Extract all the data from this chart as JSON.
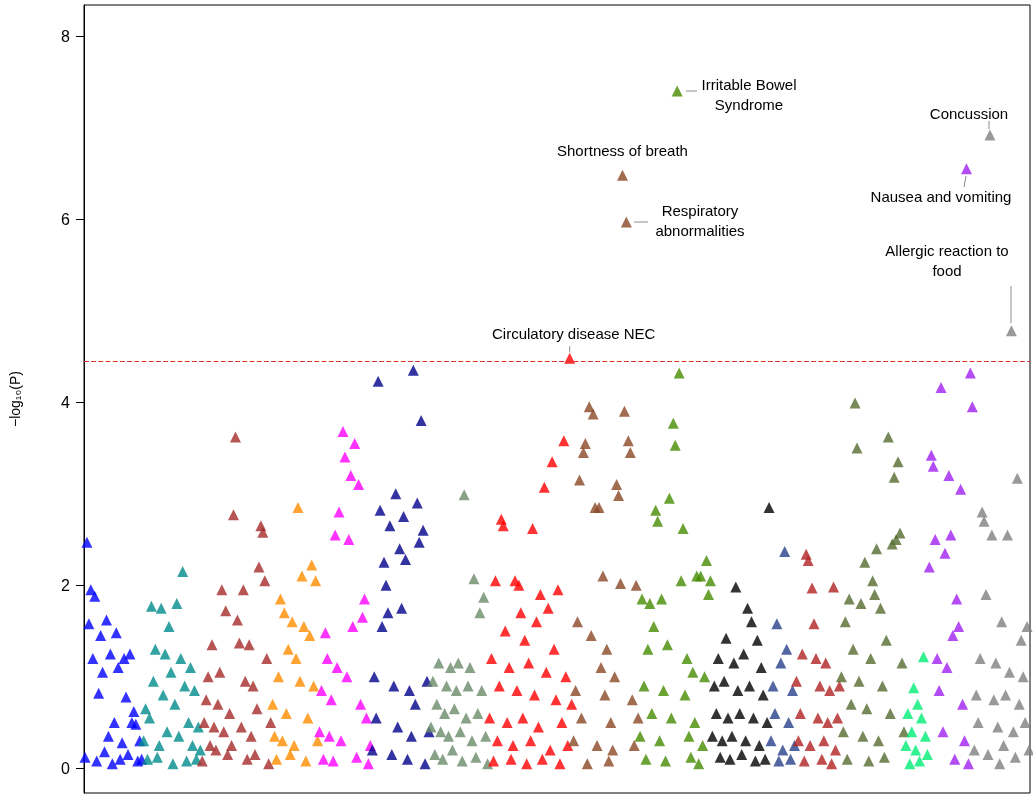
{
  "chart_data": {
    "type": "scatter",
    "ylabel": "−log₁₀(P)",
    "ylim": [
      -0.27,
      8.34
    ],
    "yticks": [
      0,
      2,
      4,
      6,
      8
    ],
    "tick_labels": "y",
    "marker": "triangle",
    "ref_lines": [
      {
        "axis": "y",
        "value": 4.45,
        "color": "#e0302a",
        "line_style": "dashed"
      }
    ],
    "annotations": [
      "Irritable Bowel\nSyndrome",
      {
        "text": "Shortness of breath",
        "y": 6.48
      },
      "Respiratory\nabnormalities",
      "Concussion",
      "Nausea and vomiting",
      "Allergic reaction to\nfood",
      {
        "text": "Circulatory disease NEC",
        "y": 4.48
      }
    ],
    "categories": [
      null,
      null,
      null,
      null,
      null,
      null,
      null,
      null,
      null,
      null,
      null,
      null,
      null,
      null,
      null,
      null,
      null,
      null,
      null,
      null,
      null,
      null,
      null,
      null,
      null,
      null,
      null,
      null,
      null,
      null,
      null,
      null,
      null,
      null,
      null,
      null,
      null,
      null,
      null,
      null,
      null,
      null,
      null,
      null,
      null,
      null,
      null,
      null,
      null,
      null,
      null,
      null,
      null,
      null,
      null,
      null,
      null,
      null,
      null,
      null,
      null,
      null,
      null,
      null,
      null,
      null,
      null,
      null,
      null,
      null,
      null,
      null,
      null,
      null,
      null,
      null,
      null,
      null,
      null,
      null,
      null,
      null,
      null,
      null,
      null,
      null,
      null,
      null,
      null,
      null,
      null,
      null,
      null,
      null,
      null,
      null,
      null,
      null,
      null,
      null,
      null,
      null,
      null,
      null,
      null,
      null,
      null,
      null,
      null,
      null,
      null,
      null,
      null,
      null,
      null,
      null,
      null,
      null,
      null,
      null,
      null,
      null,
      null,
      null,
      null,
      null,
      null,
      null,
      null,
      null,
      null,
      null,
      null,
      null,
      null,
      null,
      null,
      null,
      null,
      null,
      null,
      null,
      null,
      null,
      null,
      null,
      null,
      null,
      null,
      null,
      null,
      null,
      null,
      null,
      null,
      null,
      null,
      null,
      null,
      null,
      null,
      null,
      null,
      null,
      null,
      null,
      null,
      null,
      null,
      null,
      null,
      null,
      null,
      null,
      null,
      null,
      null,
      null,
      null,
      null,
      null,
      null,
      null,
      null,
      null,
      null,
      null,
      null,
      null,
      null,
      null,
      null,
      null,
      null,
      null,
      null,
      null,
      null,
      null,
      null,
      null,
      null,
      null,
      null,
      null,
      null,
      null,
      null,
      null,
      null,
      null,
      null,
      null,
      null,
      null,
      null,
      null,
      null,
      null,
      null,
      null,
      null,
      null,
      null,
      null,
      null,
      null,
      null,
      null,
      null,
      null,
      null,
      null,
      null,
      null,
      null,
      null,
      null,
      null,
      null,
      null,
      null,
      null,
      null,
      null,
      null,
      null,
      null,
      null,
      null,
      null,
      null,
      null,
      null,
      null,
      null,
      null,
      null,
      null,
      null,
      null,
      null,
      null,
      null,
      null,
      null,
      null,
      null,
      null,
      null,
      null,
      null,
      null,
      null,
      null,
      null,
      null,
      null,
      null,
      null,
      null,
      null,
      null,
      null,
      null,
      null,
      null,
      null,
      null,
      null,
      null,
      null,
      null,
      null,
      null,
      null,
      null,
      null,
      null,
      null,
      null,
      null,
      null,
      null,
      null,
      null,
      null,
      null,
      null,
      null,
      null,
      null,
      null,
      null,
      null,
      null,
      null,
      null,
      null,
      null,
      null,
      null,
      null,
      null,
      null,
      null,
      null,
      null,
      null,
      null,
      null,
      null,
      null,
      null,
      null,
      null,
      null,
      null,
      null,
      null,
      null,
      null,
      null,
      null,
      null,
      null,
      null,
      null,
      null,
      null,
      null,
      null,
      null,
      null,
      null,
      null,
      null,
      null,
      null,
      null,
      null,
      null,
      null,
      null,
      null,
      null,
      null,
      null,
      null,
      null,
      null,
      null,
      null,
      null,
      null,
      null,
      null,
      null,
      null,
      null,
      null,
      null,
      null,
      null,
      null,
      null,
      null,
      null,
      null,
      null,
      null,
      null,
      null,
      null,
      null,
      null,
      null,
      null,
      null,
      null,
      null,
      null,
      null,
      null,
      null,
      null,
      null,
      null,
      null,
      null,
      null,
      null,
      null,
      null,
      null,
      null,
      null,
      null,
      null,
      null,
      null,
      null,
      null,
      null,
      null,
      null,
      null,
      null,
      null,
      null,
      null,
      null,
      null,
      null,
      null,
      null,
      null,
      null,
      null,
      null,
      null,
      null,
      null,
      null,
      null,
      null,
      null,
      null,
      null,
      null,
      null,
      null,
      null,
      null,
      null,
      null,
      null,
      null,
      null,
      null,
      null,
      null,
      null,
      null,
      null,
      null,
      null,
      null,
      null,
      null,
      null,
      null,
      null,
      null,
      null,
      null,
      null,
      null,
      null,
      null,
      null,
      null,
      null,
      null
    ],
    "values": [
      0.12,
      2.47,
      1.58,
      1.95,
      1.2,
      1.88,
      0.08,
      0.82,
      1.45,
      1.05,
      0.18,
      1.62,
      0.35,
      1.25,
      0.05,
      0.5,
      1.48,
      1.1,
      0.1,
      0.28,
      1.2,
      0.78,
      0.15,
      1.25,
      0.5,
      0.62,
      0.48,
      0.08,
      0.3,
      0.1,
      0.3,
      0.65,
      0.1,
      0.55,
      1.77,
      0.95,
      1.3,
      0.12,
      0.25,
      1.75,
      0.8,
      1.25,
      0.4,
      1.55,
      1.05,
      0.05,
      0.7,
      1.8,
      0.35,
      1.2,
      2.15,
      0.9,
      0.08,
      0.5,
      1.1,
      0.25,
      0.85,
      0.1,
      0.45,
      0.2,
      0.08,
      0.5,
      0.75,
      1.0,
      0.25,
      1.35,
      0.45,
      0.2,
      0.7,
      1.05,
      1.95,
      0.4,
      1.72,
      0.15,
      0.6,
      0.25,
      2.77,
      3.62,
      1.62,
      1.37,
      0.45,
      1.95,
      0.95,
      0.1,
      1.35,
      0.35,
      0.9,
      0.15,
      0.65,
      2.2,
      2.65,
      2.58,
      2.05,
      1.2,
      0.05,
      0.5,
      0.7,
      0.35,
      0.1,
      1.0,
      1.85,
      0.3,
      1.7,
      0.6,
      1.3,
      0.15,
      1.6,
      0.25,
      1.2,
      2.85,
      0.95,
      2.1,
      1.55,
      0.08,
      0.55,
      1.45,
      2.22,
      0.9,
      2.05,
      0.3,
      0.4,
      0.85,
      0.1,
      1.48,
      1.2,
      0.35,
      0.75,
      0.08,
      2.55,
      1.1,
      2.8,
      0.3,
      3.68,
      3.4,
      1.0,
      2.5,
      3.2,
      1.55,
      3.55,
      0.12,
      3.1,
      0.7,
      1.65,
      1.85,
      0.55,
      0.05,
      0.25,
      0.2,
      1.0,
      0.55,
      4.23,
      2.82,
      1.55,
      2.25,
      2.0,
      1.7,
      2.65,
      0.15,
      0.9,
      3.0,
      0.45,
      2.4,
      1.75,
      2.75,
      2.28,
      0.1,
      0.85,
      0.35,
      4.35,
      0.7,
      2.9,
      2.47,
      3.8,
      2.6,
      0.05,
      0.95,
      0.4,
      0.45,
      0.95,
      0.15,
      0.7,
      1.15,
      0.4,
      0.1,
      0.6,
      0.9,
      0.35,
      1.1,
      0.2,
      0.65,
      0.85,
      1.15,
      0.4,
      0.08,
      2.99,
      0.55,
      0.9,
      1.1,
      0.3,
      2.07,
      0.12,
      0.6,
      1.7,
      0.85,
      1.87,
      0.35,
      0.05,
      0.55,
      1.2,
      0.08,
      2.05,
      0.3,
      0.9,
      2.72,
      2.65,
      1.5,
      0.5,
      1.1,
      0.1,
      0.25,
      2.05,
      0.85,
      2.0,
      1.7,
      0.55,
      1.4,
      0.05,
      1.15,
      0.3,
      2.62,
      0.8,
      1.6,
      0.45,
      1.9,
      0.1,
      3.07,
      1.05,
      1.75,
      0.2,
      3.35,
      1.3,
      0.75,
      1.95,
      0.05,
      0.5,
      3.58,
      1.0,
      0.25,
      4.48,
      0.7,
      0.3,
      0.85,
      1.6,
      3.15,
      0.55,
      3.45,
      3.55,
      0.05,
      3.95,
      1.45,
      3.87,
      2.85,
      0.25,
      2.85,
      1.1,
      2.1,
      0.8,
      1.3,
      0.08,
      0.5,
      0.2,
      1.0,
      3.1,
      2.98,
      2.02,
      6.48,
      3.9,
      5.97,
      3.58,
      3.45,
      0.75,
      0.25,
      2.0,
      0.55,
      0.35,
      1.85,
      0.9,
      0.1,
      1.3,
      1.8,
      0.6,
      1.55,
      2.82,
      2.7,
      0.3,
      1.85,
      0.85,
      0.08,
      1.35,
      2.95,
      0.55,
      3.77,
      3.53,
      7.4,
      4.32,
      2.05,
      2.62,
      0.8,
      1.2,
      0.35,
      0.12,
      1.05,
      0.5,
      2.1,
      0.05,
      2.1,
      0.25,
      1.0,
      2.27,
      1.9,
      2.05,
      0.35,
      0.9,
      0.6,
      1.2,
      0.12,
      0.3,
      0.95,
      1.42,
      0.55,
      0.1,
      0.35,
      1.15,
      1.98,
      0.85,
      0.6,
      0.15,
      1.25,
      0.3,
      1.75,
      0.9,
      1.6,
      0.55,
      0.08,
      1.4,
      0.25,
      1.1,
      0.8,
      0.1,
      0.5,
      2.85,
      0.3,
      0.9,
      0.6,
      1.58,
      0.08,
      1.15,
      0.2,
      2.37,
      1.3,
      0.5,
      0.1,
      0.85,
      0.25,
      0.95,
      0.3,
      0.6,
      1.25,
      0.08,
      2.34,
      2.27,
      0.25,
      1.97,
      1.58,
      1.2,
      0.55,
      0.9,
      0.1,
      0.3,
      1.15,
      0.5,
      0.85,
      0.05,
      1.98,
      0.2,
      0.55,
      0.9,
      1.0,
      0.4,
      1.6,
      0.1,
      1.85,
      0.7,
      1.3,
      3.99,
      3.5,
      0.95,
      1.8,
      0.35,
      2.25,
      0.65,
      0.08,
      1.2,
      2.05,
      1.9,
      2.4,
      0.3,
      1.75,
      0.9,
      0.12,
      1.4,
      3.62,
      0.6,
      2.45,
      3.18,
      2.5,
      3.35,
      2.57,
      1.15,
      0.4,
      0.25,
      0.6,
      0.05,
      0.4,
      0.88,
      0.2,
      0.7,
      0.08,
      0.55,
      1.22,
      0.35,
      0.15,
      2.2,
      3.42,
      3.3,
      2.5,
      1.2,
      0.85,
      4.16,
      0.4,
      2.35,
      1.1,
      3.2,
      2.55,
      1.45,
      0.1,
      1.85,
      1.55,
      3.05,
      0.7,
      0.3,
      6.55,
      0.05,
      4.32,
      3.95,
      0.2,
      0.8,
      0.5,
      1.2,
      2.8,
      2.7,
      1.9,
      0.15,
      6.92,
      2.55,
      0.75,
      1.15,
      0.45,
      0.05,
      1.6,
      0.25,
      0.8,
      2.55,
      1.05,
      4.78,
      0.4,
      0.12,
      3.17,
      0.7,
      1.4,
      1.0,
      0.5,
      1.55,
      0.2
    ],
    "colors": [
      "#0000ff",
      "#0000ff",
      "#0000ff",
      "#0000ff",
      "#0000ff",
      "#0000ff",
      "#0000ff",
      "#0000ff",
      "#0000ff",
      "#0000ff",
      "#0000ff",
      "#0000ff",
      "#0000ff",
      "#0000ff",
      "#0000ff",
      "#0000ff",
      "#0000ff",
      "#0000ff",
      "#0000ff",
      "#0000ff",
      "#0000ff",
      "#0000ff",
      "#0000ff",
      "#0000ff",
      "#0000ff",
      "#0000ff",
      "#0000ff",
      "#0000ff",
      "#0000ff",
      "#0000ff",
      "#008b8b",
      "#008b8b",
      "#008b8b",
      "#008b8b",
      "#008b8b",
      "#008b8b",
      "#008b8b",
      "#008b8b",
      "#008b8b",
      "#008b8b",
      "#008b8b",
      "#008b8b",
      "#008b8b",
      "#008b8b",
      "#008b8b",
      "#008b8b",
      "#008b8b",
      "#008b8b",
      "#008b8b",
      "#008b8b",
      "#008b8b",
      "#008b8b",
      "#008b8b",
      "#008b8b",
      "#008b8b",
      "#008b8b",
      "#008b8b",
      "#008b8b",
      "#008b8b",
      "#008b8b",
      "#a52a2a",
      "#a52a2a",
      "#a52a2a",
      "#a52a2a",
      "#a52a2a",
      "#a52a2a",
      "#a52a2a",
      "#a52a2a",
      "#a52a2a",
      "#a52a2a",
      "#a52a2a",
      "#a52a2a",
      "#a52a2a",
      "#a52a2a",
      "#a52a2a",
      "#a52a2a",
      "#a52a2a",
      "#a52a2a",
      "#a52a2a",
      "#a52a2a",
      "#a52a2a",
      "#a52a2a",
      "#a52a2a",
      "#a52a2a",
      "#a52a2a",
      "#a52a2a",
      "#a52a2a",
      "#a52a2a",
      "#a52a2a",
      "#a52a2a",
      "#a52a2a",
      "#a52a2a",
      "#a52a2a",
      "#a52a2a",
      "#a52a2a",
      "#a52a2a",
      "#ff8c00",
      "#ff8c00",
      "#ff8c00",
      "#ff8c00",
      "#ff8c00",
      "#ff8c00",
      "#ff8c00",
      "#ff8c00",
      "#ff8c00",
      "#ff8c00",
      "#ff8c00",
      "#ff8c00",
      "#ff8c00",
      "#ff8c00",
      "#ff8c00",
      "#ff8c00",
      "#ff8c00",
      "#ff8c00",
      "#ff8c00",
      "#ff8c00",
      "#ff8c00",
      "#ff8c00",
      "#ff8c00",
      "#ff8c00",
      "#ff00ff",
      "#ff00ff",
      "#ff00ff",
      "#ff00ff",
      "#ff00ff",
      "#ff00ff",
      "#ff00ff",
      "#ff00ff",
      "#ff00ff",
      "#ff00ff",
      "#ff00ff",
      "#ff00ff",
      "#ff00ff",
      "#ff00ff",
      "#ff00ff",
      "#ff00ff",
      "#ff00ff",
      "#ff00ff",
      "#ff00ff",
      "#ff00ff",
      "#ff00ff",
      "#ff00ff",
      "#ff00ff",
      "#ff00ff",
      "#ff00ff",
      "#ff00ff",
      "#ff00ff",
      "#00008b",
      "#00008b",
      "#00008b",
      "#00008b",
      "#00008b",
      "#00008b",
      "#00008b",
      "#00008b",
      "#00008b",
      "#00008b",
      "#00008b",
      "#00008b",
      "#00008b",
      "#00008b",
      "#00008b",
      "#00008b",
      "#00008b",
      "#00008b",
      "#00008b",
      "#00008b",
      "#00008b",
      "#00008b",
      "#00008b",
      "#00008b",
      "#00008b",
      "#00008b",
      "#00008b",
      "#00008b",
      "#00008b",
      "#00008b",
      "#698b69",
      "#698b69",
      "#698b69",
      "#698b69",
      "#698b69",
      "#698b69",
      "#698b69",
      "#698b69",
      "#698b69",
      "#698b69",
      "#698b69",
      "#698b69",
      "#698b69",
      "#698b69",
      "#698b69",
      "#698b69",
      "#698b69",
      "#698b69",
      "#698b69",
      "#698b69",
      "#698b69",
      "#698b69",
      "#698b69",
      "#698b69",
      "#698b69",
      "#698b69",
      "#698b69",
      "#698b69",
      "#698b69",
      "#698b69",
      "#ff0000",
      "#ff0000",
      "#ff0000",
      "#ff0000",
      "#ff0000",
      "#ff0000",
      "#ff0000",
      "#ff0000",
      "#ff0000",
      "#ff0000",
      "#ff0000",
      "#ff0000",
      "#ff0000",
      "#ff0000",
      "#ff0000",
      "#ff0000",
      "#ff0000",
      "#ff0000",
      "#ff0000",
      "#ff0000",
      "#ff0000",
      "#ff0000",
      "#ff0000",
      "#ff0000",
      "#ff0000",
      "#ff0000",
      "#ff0000",
      "#ff0000",
      "#ff0000",
      "#ff0000",
      "#ff0000",
      "#ff0000",
      "#ff0000",
      "#ff0000",
      "#ff0000",
      "#ff0000",
      "#ff0000",
      "#ff0000",
      "#ff0000",
      "#ff0000",
      "#ff0000",
      "#ff0000",
      "#ff0000",
      "#8b4726",
      "#8b4726",
      "#8b4726",
      "#8b4726",
      "#8b4726",
      "#8b4726",
      "#8b4726",
      "#8b4726",
      "#8b4726",
      "#8b4726",
      "#8b4726",
      "#8b4726",
      "#8b4726",
      "#8b4726",
      "#8b4726",
      "#8b4726",
      "#8b4726",
      "#8b4726",
      "#8b4726",
      "#8b4726",
      "#8b4726",
      "#8b4726",
      "#8b4726",
      "#8b4726",
      "#8b4726",
      "#8b4726",
      "#8b4726",
      "#8b4726",
      "#8b4726",
      "#8b4726",
      "#8b4726",
      "#8b4726",
      "#8b4726",
      "#8b4726",
      "#458b00",
      "#458b00",
      "#458b00",
      "#458b00",
      "#458b00",
      "#458b00",
      "#458b00",
      "#458b00",
      "#458b00",
      "#458b00",
      "#458b00",
      "#458b00",
      "#458b00",
      "#458b00",
      "#458b00",
      "#458b00",
      "#458b00",
      "#458b00",
      "#458b00",
      "#458b00",
      "#458b00",
      "#458b00",
      "#458b00",
      "#458b00",
      "#458b00",
      "#458b00",
      "#458b00",
      "#458b00",
      "#458b00",
      "#458b00",
      "#458b00",
      "#458b00",
      "#458b00",
      "#458b00",
      "#458b00",
      "#458b00",
      "#458b00",
      "#000000",
      "#000000",
      "#000000",
      "#000000",
      "#000000",
      "#000000",
      "#000000",
      "#000000",
      "#000000",
      "#000000",
      "#000000",
      "#000000",
      "#000000",
      "#000000",
      "#000000",
      "#000000",
      "#000000",
      "#000000",
      "#000000",
      "#000000",
      "#000000",
      "#000000",
      "#000000",
      "#000000",
      "#000000",
      "#000000",
      "#000000",
      "#000000",
      "#000000",
      "#000000",
      "#27408b",
      "#27408b",
      "#27408b",
      "#27408b",
      "#27408b",
      "#27408b",
      "#27408b",
      "#27408b",
      "#27408b",
      "#27408b",
      "#27408b",
      "#27408b",
      "#27408b",
      "#b22222",
      "#b22222",
      "#b22222",
      "#b22222",
      "#b22222",
      "#b22222",
      "#b22222",
      "#b22222",
      "#b22222",
      "#b22222",
      "#b22222",
      "#b22222",
      "#b22222",
      "#b22222",
      "#b22222",
      "#b22222",
      "#b22222",
      "#b22222",
      "#b22222",
      "#b22222",
      "#b22222",
      "#b22222",
      "#b22222",
      "#556b2f",
      "#556b2f",
      "#556b2f",
      "#556b2f",
      "#556b2f",
      "#556b2f",
      "#556b2f",
      "#556b2f",
      "#556b2f",
      "#556b2f",
      "#556b2f",
      "#556b2f",
      "#556b2f",
      "#556b2f",
      "#556b2f",
      "#556b2f",
      "#556b2f",
      "#556b2f",
      "#556b2f",
      "#556b2f",
      "#556b2f",
      "#556b2f",
      "#556b2f",
      "#556b2f",
      "#556b2f",
      "#556b2f",
      "#556b2f",
      "#556b2f",
      "#556b2f",
      "#556b2f",
      "#556b2f",
      "#556b2f",
      "#556b2f",
      "#00ee76",
      "#00ee76",
      "#00ee76",
      "#00ee76",
      "#00ee76",
      "#00ee76",
      "#00ee76",
      "#00ee76",
      "#00ee76",
      "#00ee76",
      "#00ee76",
      "#00ee76",
      "#a020f0",
      "#a020f0",
      "#a020f0",
      "#a020f0",
      "#a020f0",
      "#a020f0",
      "#a020f0",
      "#a020f0",
      "#a020f0",
      "#a020f0",
      "#a020f0",
      "#a020f0",
      "#a020f0",
      "#a020f0",
      "#a020f0",
      "#a020f0",
      "#a020f0",
      "#a020f0",
      "#a020f0",
      "#a020f0",
      "#a020f0",
      "#a020f0",
      "#a020f0",
      "#7f7f7f",
      "#7f7f7f",
      "#7f7f7f",
      "#7f7f7f",
      "#7f7f7f",
      "#7f7f7f",
      "#7f7f7f",
      "#7f7f7f",
      "#7f7f7f",
      "#7f7f7f",
      "#7f7f7f",
      "#7f7f7f",
      "#7f7f7f",
      "#7f7f7f",
      "#7f7f7f",
      "#7f7f7f",
      "#7f7f7f",
      "#7f7f7f",
      "#7f7f7f",
      "#7f7f7f",
      "#7f7f7f",
      "#7f7f7f",
      "#7f7f7f",
      "#7f7f7f",
      "#7f7f7f",
      "#7f7f7f",
      "#7f7f7f",
      "#7f7f7f",
      "#7f7f7f"
    ]
  }
}
